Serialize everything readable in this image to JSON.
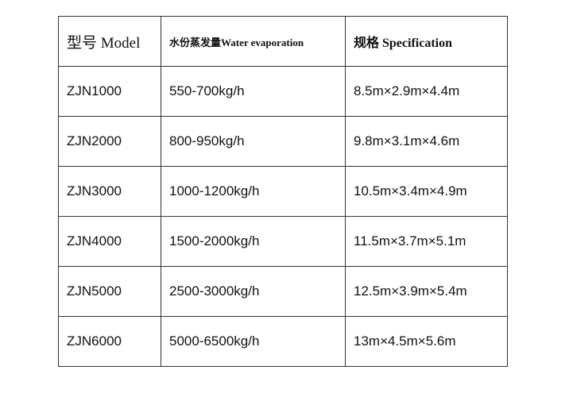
{
  "table": {
    "header": [
      "型号 Model",
      "水份蒸发量Water evaporation",
      "规格 Specification"
    ],
    "rows": [
      [
        "ZJN1000",
        "550-700kg/h",
        "8.5m×2.9m×4.4m"
      ],
      [
        "ZJN2000",
        "800-950kg/h",
        "9.8m×3.1m×4.6m"
      ],
      [
        "ZJN3000",
        "1000-1200kg/h",
        "10.5m×3.4m×4.9m"
      ],
      [
        "ZJN4000",
        "1500-2000kg/h",
        "11.5m×3.7m×5.1m"
      ],
      [
        "ZJN5000",
        "2500-3000kg/h",
        "12.5m×3.9m×5.4m"
      ],
      [
        "ZJN6000",
        "5000-6500kg/h",
        "13m×4.5m×5.6m"
      ]
    ]
  }
}
